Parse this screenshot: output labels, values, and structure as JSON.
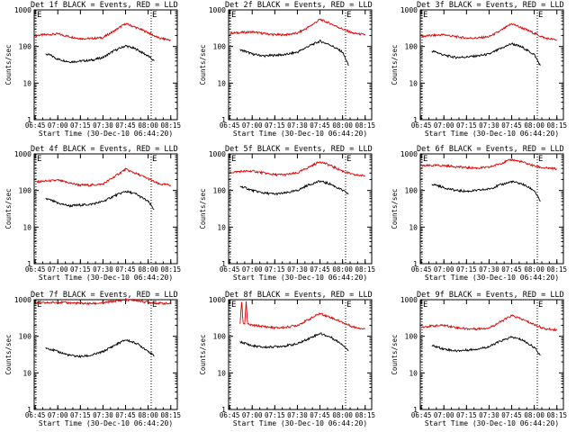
{
  "colors": {
    "events": "#000000",
    "lld": "#dd0000",
    "axes": "#000000"
  },
  "chart_data": [
    {
      "type": "line",
      "title": "Det 1f BLACK = Events, RED = LLD",
      "xlabel": "Start Time (30-Dec-10 06:44:20)",
      "ylabel": "Counts/sec",
      "yscale": "log",
      "ylim": [
        1,
        1000
      ],
      "x_ticks": [
        "06:45",
        "07:00",
        "07:15",
        "07:30",
        "07:45",
        "08:00",
        "08:15"
      ],
      "y_ticks": [
        "1",
        "10",
        "100",
        "1000"
      ],
      "markers": [
        "E",
        "E"
      ],
      "series": [
        {
          "name": "LLD",
          "x": [
            "06:45",
            "06:52",
            "07:00",
            "07:08",
            "07:15",
            "07:22",
            "07:30",
            "07:37",
            "07:45",
            "07:52",
            "08:00",
            "08:07",
            "08:15"
          ],
          "values": [
            200,
            210,
            220,
            185,
            165,
            165,
            175,
            260,
            420,
            330,
            240,
            170,
            150
          ]
        },
        {
          "name": "Events",
          "x": [
            "06:52",
            "06:55",
            "07:00",
            "07:08",
            "07:15",
            "07:22",
            "07:30",
            "07:37",
            "07:45",
            "07:52",
            "08:00",
            "08:04"
          ],
          "values": [
            62,
            58,
            45,
            38,
            40,
            42,
            50,
            75,
            105,
            85,
            55,
            40
          ]
        }
      ]
    },
    {
      "type": "line",
      "title": "Det 2f BLACK = Events, RED = LLD",
      "xlabel": "Start Time (30-Dec-10 06:44:20)",
      "ylabel": "Counts/sec",
      "yscale": "log",
      "ylim": [
        1,
        1000
      ],
      "x_ticks": [
        "06:45",
        "07:00",
        "07:15",
        "07:30",
        "07:45",
        "08:00",
        "08:15"
      ],
      "y_ticks": [
        "1",
        "10",
        "100",
        "1000"
      ],
      "markers": [
        "E",
        "E"
      ],
      "series": [
        {
          "name": "LLD",
          "x": [
            "06:45",
            "06:52",
            "07:00",
            "07:08",
            "07:15",
            "07:22",
            "07:30",
            "07:37",
            "07:45",
            "07:52",
            "08:00",
            "08:07",
            "08:15"
          ],
          "values": [
            230,
            240,
            250,
            225,
            210,
            210,
            230,
            330,
            550,
            420,
            300,
            230,
            210
          ]
        },
        {
          "name": "Events",
          "x": [
            "06:52",
            "06:55",
            "07:00",
            "07:08",
            "07:15",
            "07:22",
            "07:30",
            "07:37",
            "07:45",
            "07:52",
            "08:00",
            "08:04"
          ],
          "values": [
            80,
            75,
            62,
            55,
            58,
            60,
            70,
            100,
            140,
            110,
            70,
            30
          ]
        }
      ]
    },
    {
      "type": "line",
      "title": "Det 3f BLACK = Events, RED = LLD",
      "xlabel": "Start Time (30-Dec-10 06:44:20)",
      "ylabel": "Counts/sec",
      "yscale": "log",
      "ylim": [
        1,
        1000
      ],
      "x_ticks": [
        "06:45",
        "07:00",
        "07:15",
        "07:30",
        "07:45",
        "08:00",
        "08:15"
      ],
      "y_ticks": [
        "1",
        "10",
        "100",
        "1000"
      ],
      "markers": [
        "E",
        "E"
      ],
      "series": [
        {
          "name": "LLD",
          "x": [
            "06:45",
            "06:52",
            "07:00",
            "07:08",
            "07:15",
            "07:22",
            "07:30",
            "07:37",
            "07:45",
            "07:52",
            "08:00",
            "08:07",
            "08:15"
          ],
          "values": [
            190,
            200,
            210,
            185,
            170,
            170,
            185,
            260,
            420,
            320,
            230,
            170,
            150
          ]
        },
        {
          "name": "Events",
          "x": [
            "06:52",
            "06:55",
            "07:00",
            "07:08",
            "07:15",
            "07:22",
            "07:30",
            "07:37",
            "07:45",
            "07:52",
            "08:00",
            "08:04"
          ],
          "values": [
            75,
            70,
            58,
            50,
            52,
            55,
            62,
            85,
            120,
            95,
            60,
            30
          ]
        }
      ]
    },
    {
      "type": "line",
      "title": "Det 4f BLACK = Events, RED = LLD",
      "xlabel": "Start Time (30-Dec-10 06:44:20)",
      "ylabel": "Counts/sec",
      "yscale": "log",
      "ylim": [
        1,
        1000
      ],
      "x_ticks": [
        "06:45",
        "07:00",
        "07:15",
        "07:30",
        "07:45",
        "08:00",
        "08:15"
      ],
      "y_ticks": [
        "1",
        "10",
        "100",
        "1000"
      ],
      "markers": [
        "E",
        "E"
      ],
      "series": [
        {
          "name": "LLD",
          "x": [
            "06:45",
            "06:52",
            "07:00",
            "07:08",
            "07:15",
            "07:22",
            "07:30",
            "07:37",
            "07:45",
            "07:52",
            "08:00",
            "08:07",
            "08:15"
          ],
          "values": [
            170,
            180,
            190,
            160,
            140,
            140,
            150,
            230,
            380,
            290,
            210,
            150,
            140
          ]
        },
        {
          "name": "Events",
          "x": [
            "06:52",
            "06:55",
            "07:00",
            "07:08",
            "07:15",
            "07:22",
            "07:30",
            "07:37",
            "07:45",
            "07:52",
            "08:00",
            "08:04"
          ],
          "values": [
            60,
            55,
            45,
            38,
            40,
            42,
            50,
            70,
            95,
            80,
            50,
            30
          ]
        }
      ]
    },
    {
      "type": "line",
      "title": "Det 5f BLACK = Events, RED = LLD",
      "xlabel": "Start Time (30-Dec-10 06:44:20)",
      "ylabel": "Counts/sec",
      "yscale": "log",
      "ylim": [
        1,
        1000
      ],
      "x_ticks": [
        "06:45",
        "07:00",
        "07:15",
        "07:30",
        "07:45",
        "08:00",
        "08:15"
      ],
      "y_ticks": [
        "1",
        "10",
        "100",
        "1000"
      ],
      "markers": [
        "E",
        "E"
      ],
      "series": [
        {
          "name": "LLD",
          "x": [
            "06:45",
            "06:52",
            "07:00",
            "07:08",
            "07:15",
            "07:22",
            "07:30",
            "07:37",
            "07:45",
            "07:52",
            "08:00",
            "08:07",
            "08:15"
          ],
          "values": [
            310,
            330,
            340,
            300,
            270,
            270,
            300,
            420,
            620,
            480,
            340,
            270,
            250
          ]
        },
        {
          "name": "Events",
          "x": [
            "06:52",
            "06:55",
            "07:00",
            "07:08",
            "07:15",
            "07:22",
            "07:30",
            "07:37",
            "07:45",
            "07:52",
            "08:00",
            "08:04"
          ],
          "values": [
            130,
            120,
            100,
            85,
            80,
            85,
            100,
            140,
            180,
            150,
            100,
            80
          ]
        }
      ]
    },
    {
      "type": "line",
      "title": "Det 6f BLACK = Events, RED = LLD",
      "xlabel": "Start Time (30-Dec-10 06:44:20)",
      "ylabel": "Counts/sec",
      "yscale": "log",
      "ylim": [
        1,
        1000
      ],
      "x_ticks": [
        "06:45",
        "07:00",
        "07:15",
        "07:30",
        "07:45",
        "08:00",
        "08:15"
      ],
      "y_ticks": [
        "1",
        "10",
        "100",
        "1000"
      ],
      "markers": [
        "E",
        "E"
      ],
      "series": [
        {
          "name": "LLD",
          "x": [
            "06:45",
            "06:52",
            "07:00",
            "07:08",
            "07:15",
            "07:22",
            "07:30",
            "07:37",
            "07:45",
            "07:52",
            "08:00",
            "08:07",
            "08:15"
          ],
          "values": [
            470,
            480,
            480,
            450,
            420,
            410,
            430,
            540,
            700,
            600,
            470,
            410,
            390
          ]
        },
        {
          "name": "Events",
          "x": [
            "06:52",
            "06:55",
            "07:00",
            "07:08",
            "07:15",
            "07:22",
            "07:30",
            "07:37",
            "07:45",
            "07:52",
            "08:00",
            "08:04"
          ],
          "values": [
            150,
            140,
            120,
            100,
            95,
            100,
            110,
            140,
            175,
            150,
            100,
            50
          ]
        }
      ]
    },
    {
      "type": "line",
      "title": "Det 7f BLACK = Events, RED = LLD",
      "xlabel": "Start Time (30-Dec-10 06:44:20)",
      "ylabel": "Counts/sec",
      "yscale": "log",
      "ylim": [
        1,
        1000
      ],
      "x_ticks": [
        "06:45",
        "07:00",
        "07:15",
        "07:30",
        "07:45",
        "08:00",
        "08:15"
      ],
      "y_ticks": [
        "1",
        "10",
        "100",
        "1000"
      ],
      "markers": [
        "E",
        "E"
      ],
      "series": [
        {
          "name": "LLD",
          "x": [
            "06:45",
            "06:52",
            "07:00",
            "07:08",
            "07:15",
            "07:22",
            "07:30",
            "07:37",
            "07:45",
            "07:52",
            "08:00",
            "08:07",
            "08:15"
          ],
          "values": [
            800,
            820,
            850,
            820,
            800,
            780,
            820,
            900,
            1000,
            950,
            850,
            800,
            780
          ]
        },
        {
          "name": "Events",
          "x": [
            "06:52",
            "06:55",
            "07:00",
            "07:08",
            "07:15",
            "07:22",
            "07:30",
            "07:37",
            "07:45",
            "07:52",
            "08:00",
            "08:04"
          ],
          "values": [
            48,
            45,
            38,
            30,
            28,
            30,
            38,
            55,
            80,
            65,
            40,
            28
          ]
        }
      ]
    },
    {
      "type": "line",
      "title": "Det 8f BLACK = Events, RED = LLD",
      "xlabel": "Start Time (30-Dec-10 06:44:20)",
      "ylabel": "Counts/sec",
      "yscale": "log",
      "ylim": [
        1,
        1000
      ],
      "x_ticks": [
        "06:45",
        "07:00",
        "07:15",
        "07:30",
        "07:45",
        "08:00",
        "08:15"
      ],
      "y_ticks": [
        "1",
        "10",
        "100",
        "1000"
      ],
      "markers": [
        "E",
        "E"
      ],
      "series": [
        {
          "name": "LLD",
          "x": [
            "06:52",
            "06:53",
            "06:54",
            "06:55",
            "06:56",
            "06:57",
            "07:00",
            "07:08",
            "07:15",
            "07:22",
            "07:30",
            "07:37",
            "07:45",
            "07:52",
            "08:00",
            "08:07",
            "08:15"
          ],
          "values": [
            220,
            900,
            230,
            220,
            900,
            210,
            200,
            185,
            170,
            175,
            200,
            280,
            420,
            330,
            240,
            180,
            160
          ]
        },
        {
          "name": "Events",
          "x": [
            "06:52",
            "06:55",
            "07:00",
            "07:08",
            "07:15",
            "07:22",
            "07:30",
            "07:37",
            "07:45",
            "07:52",
            "08:00",
            "08:04"
          ],
          "values": [
            70,
            65,
            55,
            50,
            52,
            55,
            62,
            85,
            120,
            95,
            60,
            40
          ]
        }
      ]
    },
    {
      "type": "line",
      "title": "Det 9f BLACK = Events, RED = LLD",
      "xlabel": "Start Time (30-Dec-10 06:44:20)",
      "ylabel": "Counts/sec",
      "yscale": "log",
      "ylim": [
        1,
        1000
      ],
      "x_ticks": [
        "06:45",
        "07:00",
        "07:15",
        "07:30",
        "07:45",
        "08:00",
        "08:15"
      ],
      "y_ticks": [
        "1",
        "10",
        "100",
        "1000"
      ],
      "markers": [
        "E",
        "E"
      ],
      "series": [
        {
          "name": "LLD",
          "x": [
            "06:45",
            "06:52",
            "07:00",
            "07:08",
            "07:15",
            "07:22",
            "07:30",
            "07:37",
            "07:45",
            "07:52",
            "08:00",
            "08:07",
            "08:15"
          ],
          "values": [
            180,
            190,
            200,
            175,
            160,
            160,
            170,
            240,
            370,
            290,
            210,
            160,
            150
          ]
        },
        {
          "name": "Events",
          "x": [
            "06:52",
            "06:55",
            "07:00",
            "07:08",
            "07:15",
            "07:22",
            "07:30",
            "07:37",
            "07:45",
            "07:52",
            "08:00",
            "08:04"
          ],
          "values": [
            55,
            52,
            45,
            40,
            42,
            45,
            52,
            72,
            95,
            80,
            50,
            30
          ]
        }
      ]
    }
  ]
}
